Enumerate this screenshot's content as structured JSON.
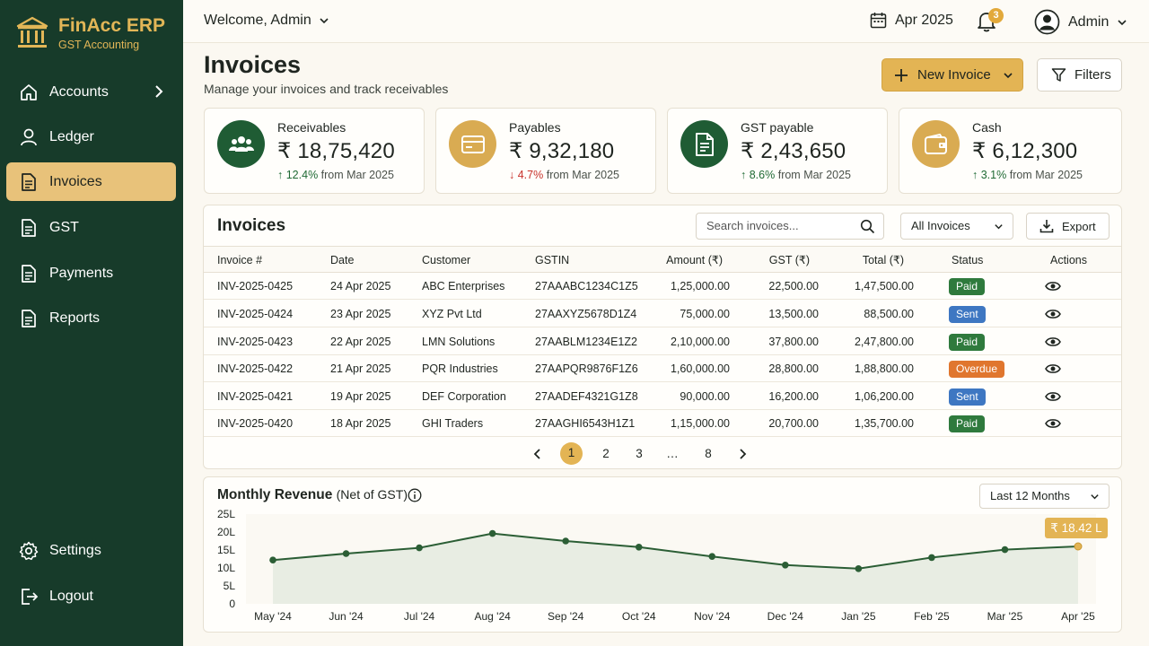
{
  "brand": {
    "name": "FinAcc ERP",
    "subtitle": "GST Accounting"
  },
  "sidebar": {
    "items": [
      {
        "label": "Accounts",
        "icon": "home-icon"
      },
      {
        "label": "Ledger",
        "icon": "user-icon"
      },
      {
        "label": "Invoices",
        "icon": "document-icon",
        "active": true
      },
      {
        "label": "GST",
        "icon": "document-icon"
      },
      {
        "label": "Payments",
        "icon": "document-icon"
      },
      {
        "label": "Reports",
        "icon": "document-icon"
      }
    ],
    "settings": "Settings",
    "logout": "Logout"
  },
  "header": {
    "welcome": "Welcome, Admin",
    "date": "Apr 2025",
    "notifications": "3",
    "user": "Admin"
  },
  "page": {
    "title": "Invoices",
    "subtitle": "Manage your invoices and track receivables",
    "new_invoice": "New Invoice",
    "filters": "Filters"
  },
  "kpis": [
    {
      "label": "Receivables",
      "value": "₹ 18,75,420",
      "change": "12.4%",
      "direction": "up",
      "suffix": "from Mar 2025",
      "color": "#1f5c34"
    },
    {
      "label": "Payables",
      "value": "₹ 9,32,180",
      "change": "4.7%",
      "direction": "down",
      "suffix": "from Mar 2025",
      "color": "#d9ab52"
    },
    {
      "label": "GST payable",
      "value": "₹ 2,43,650",
      "change": "8.6%",
      "direction": "up",
      "suffix": "from Mar 2025",
      "color": "#1f5c34"
    },
    {
      "label": "Cash",
      "value": "₹ 6,12,300",
      "change": "3.1%",
      "direction": "up",
      "suffix": "from Mar 2025",
      "color": "#d9ab52"
    }
  ],
  "invoices": {
    "title": "Invoices",
    "search_placeholder": "Search invoices...",
    "filter": "All Invoices",
    "export": "Export",
    "columns": [
      "Invoice #",
      "Date",
      "Customer",
      "GSTIN",
      "Amount (₹)",
      "GST (₹)",
      "Total (₹)",
      "Status",
      "Actions"
    ],
    "rows": [
      {
        "id": "INV-2025-0425",
        "date": "24 Apr 2025",
        "customer": "ABC Enterprises",
        "gstin": "27AAABC1234C1Z5",
        "amount": "1,25,000.00",
        "gst": "22,500.00",
        "total": "1,47,500.00",
        "status": "Paid"
      },
      {
        "id": "INV-2025-0424",
        "date": "23 Apr 2025",
        "customer": "XYZ Pvt Ltd",
        "gstin": "27AAXYZ5678D1Z4",
        "amount": "75,000.00",
        "gst": "13,500.00",
        "total": "88,500.00",
        "status": "Sent"
      },
      {
        "id": "INV-2025-0423",
        "date": "22 Apr 2025",
        "customer": "LMN Solutions",
        "gstin": "27AABLM1234E1Z2",
        "amount": "2,10,000.00",
        "gst": "37,800.00",
        "total": "2,47,800.00",
        "status": "Paid"
      },
      {
        "id": "INV-2025-0422",
        "date": "21 Apr 2025",
        "customer": "PQR Industries",
        "gstin": "27AAPQR9876F1Z6",
        "amount": "1,60,000.00",
        "gst": "28,800.00",
        "total": "1,88,800.00",
        "status": "Overdue"
      },
      {
        "id": "INV-2025-0421",
        "date": "19 Apr 2025",
        "customer": "DEF Corporation",
        "gstin": "27AADEF4321G1Z8",
        "amount": "90,000.00",
        "gst": "16,200.00",
        "total": "1,06,200.00",
        "status": "Sent"
      },
      {
        "id": "INV-2025-0420",
        "date": "18 Apr 2025",
        "customer": "GHI Traders",
        "gstin": "27AAGHI6543H1Z1",
        "amount": "1,15,000.00",
        "gst": "20,700.00",
        "total": "1,35,700.00",
        "status": "Paid"
      }
    ],
    "pagination": [
      "1",
      "2",
      "3",
      "…",
      "8"
    ],
    "current_page": "1"
  },
  "revenue": {
    "title": "Monthly Revenue",
    "title_note": "(Net of GST)",
    "range": "Last 12 Months",
    "callout": "₹ 18.42 L"
  },
  "chart_data": {
    "type": "area",
    "categories": [
      "May '24",
      "Jun '24",
      "Jul '24",
      "Aug '24",
      "Sep '24",
      "Oct '24",
      "Nov '24",
      "Dec '24",
      "Jan '25",
      "Feb '25",
      "Mar '25",
      "Apr '25"
    ],
    "values": [
      12.2,
      14.0,
      15.6,
      19.6,
      17.5,
      15.8,
      13.2,
      10.8,
      9.8,
      12.9,
      15.1,
      16.0
    ],
    "y_ticks": [
      "0",
      "5L",
      "10L",
      "15L",
      "20L",
      "25L"
    ],
    "ylim": [
      0,
      25
    ],
    "grid": false,
    "line_color": "#2b5e35",
    "highlight_color": "#e3b454"
  }
}
